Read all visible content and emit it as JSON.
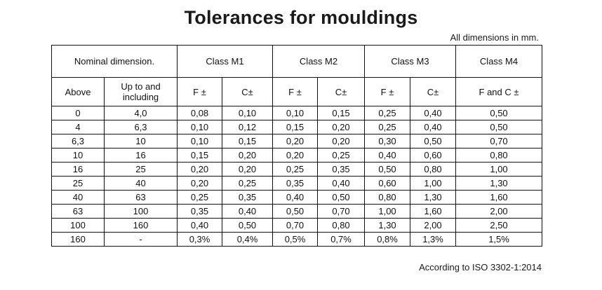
{
  "title": "Tolerances for mouldings",
  "note_top": "All dimensions in mm.",
  "note_bottom": "According to ISO 3302-1:2014",
  "header": {
    "nominal": "Nominal dimension.",
    "class_m1": "Class M1",
    "class_m2": "Class M2",
    "class_m3": "Class M3",
    "class_m4": "Class M4",
    "above": "Above",
    "up_to_line1": "Up to and",
    "up_to_line2": "including",
    "f_pm": "F ±",
    "c_pm": "C±",
    "f_and_c": "F and C ±"
  },
  "rows": [
    [
      "0",
      "4,0",
      "0,08",
      "0,10",
      "0,10",
      "0,15",
      "0,25",
      "0,40",
      "0,50"
    ],
    [
      "4",
      "6,3",
      "0,10",
      "0,12",
      "0,15",
      "0,20",
      "0,25",
      "0,40",
      "0,50"
    ],
    [
      "6,3",
      "10",
      "0,10",
      "0,15",
      "0,20",
      "0,20",
      "0,30",
      "0,50",
      "0,70"
    ],
    [
      "10",
      "16",
      "0,15",
      "0,20",
      "0,20",
      "0,25",
      "0,40",
      "0,60",
      "0,80"
    ],
    [
      "16",
      "25",
      "0,20",
      "0,20",
      "0,25",
      "0,35",
      "0,50",
      "0,80",
      "1,00"
    ],
    [
      "25",
      "40",
      "0,20",
      "0,25",
      "0,35",
      "0,40",
      "0,60",
      "1,00",
      "1,30"
    ],
    [
      "40",
      "63",
      "0,25",
      "0,35",
      "0,40",
      "0,50",
      "0,80",
      "1,30",
      "1,60"
    ],
    [
      "63",
      "100",
      "0,35",
      "0,40",
      "0,50",
      "0,70",
      "1,00",
      "1,60",
      "2,00"
    ],
    [
      "100",
      "160",
      "0,40",
      "0,50",
      "0,70",
      "0,80",
      "1,30",
      "2,00",
      "2,50"
    ],
    [
      "160",
      "-",
      "0,3%",
      "0,4%",
      "0,5%",
      "0,7%",
      "0,8%",
      "1,3%",
      "1,5%"
    ]
  ]
}
